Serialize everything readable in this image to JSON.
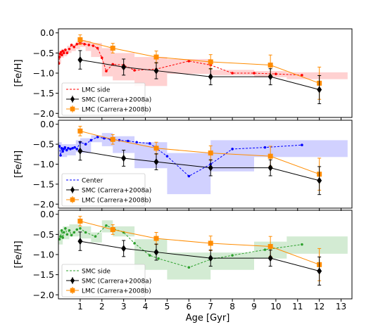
{
  "figure": {
    "xlabel": "Age [Gyr]"
  },
  "chart_data": [
    {
      "type": "line",
      "panel": "top",
      "ylabel": "[Fe/H]",
      "xlim": [
        0,
        13.5
      ],
      "ylim": [
        -2.1,
        0.1
      ],
      "xticks": [
        1,
        2,
        3,
        4,
        5,
        6,
        7,
        8,
        9,
        10,
        11,
        12,
        13
      ],
      "yticks": [
        0.0,
        -0.5,
        -1.0,
        -1.5,
        -2.0
      ],
      "ytick_labels": [
        "0.0",
        "−0.5",
        "−1.0",
        "−1.5",
        "−2.0"
      ],
      "legend": "lower-left",
      "color": "#ff0000",
      "band_color": "#ffb3b3",
      "bands": [
        {
          "x0": 0.0,
          "x1": 0.12,
          "y0": -0.75,
          "y1": -0.45
        },
        {
          "x0": 0.12,
          "x1": 0.25,
          "y0": -0.62,
          "y1": -0.4
        },
        {
          "x0": 0.25,
          "x1": 0.4,
          "y0": -0.58,
          "y1": -0.4
        },
        {
          "x0": 0.4,
          "x1": 0.6,
          "y0": -0.5,
          "y1": -0.32
        },
        {
          "x0": 0.6,
          "x1": 0.8,
          "y0": -0.45,
          "y1": -0.28
        },
        {
          "x0": 0.8,
          "x1": 1.0,
          "y0": -0.4,
          "y1": -0.22
        },
        {
          "x0": 1.0,
          "x1": 1.25,
          "y0": -0.35,
          "y1": -0.18
        },
        {
          "x0": 1.25,
          "x1": 1.5,
          "y0": -0.45,
          "y1": -0.2
        },
        {
          "x0": 1.5,
          "x1": 2.0,
          "y0": -0.6,
          "y1": -0.25
        },
        {
          "x0": 2.0,
          "x1": 2.5,
          "y0": -1.08,
          "y1": -0.38
        },
        {
          "x0": 2.5,
          "x1": 3.5,
          "y0": -1.18,
          "y1": -0.5
        },
        {
          "x0": 3.5,
          "x1": 5.0,
          "y0": -1.32,
          "y1": -0.6
        },
        {
          "x0": 5.0,
          "x1": 7.0,
          "y0": -1.02,
          "y1": -0.65
        },
        {
          "x0": 7.0,
          "x1": 9.0,
          "y0": -1.05,
          "y1": -0.92
        },
        {
          "x0": 9.0,
          "x1": 10.5,
          "y0": -1.1,
          "y1": -0.95
        },
        {
          "x0": 10.5,
          "x1": 13.3,
          "y0": -1.15,
          "y1": -0.98
        }
      ],
      "series": [
        {
          "name": "LMC side",
          "marker": "dot",
          "x": [
            0.02,
            0.05,
            0.08,
            0.12,
            0.16,
            0.2,
            0.25,
            0.32,
            0.4,
            0.5,
            0.6,
            0.72,
            0.85,
            1.0,
            1.2,
            1.4,
            1.6,
            1.8,
            2.0,
            2.2,
            2.5,
            3.0,
            3.5,
            4.5,
            6.0,
            7.0,
            8.0,
            9.0,
            10.0,
            11.2
          ],
          "y": [
            -0.76,
            -0.6,
            -0.52,
            -0.48,
            -0.55,
            -0.45,
            -0.5,
            -0.42,
            -0.5,
            -0.4,
            -0.3,
            -0.35,
            -0.28,
            -0.25,
            -0.28,
            -0.3,
            -0.32,
            -0.38,
            -0.62,
            -0.95,
            -0.78,
            -0.8,
            -0.93,
            -0.9,
            -0.7,
            -0.8,
            -1.0,
            -1.0,
            -1.02,
            -1.05
          ]
        }
      ]
    },
    {
      "type": "line",
      "panel": "middle",
      "ylabel": "[Fe/H]",
      "xlim": [
        0,
        13.5
      ],
      "ylim": [
        -2.1,
        0.1
      ],
      "xticks": [
        1,
        2,
        3,
        4,
        5,
        6,
        7,
        8,
        9,
        10,
        11,
        12,
        13
      ],
      "yticks": [
        0.0,
        -0.5,
        -1.0,
        -1.5,
        -2.0
      ],
      "ytick_labels": [
        "0.0",
        "−0.5",
        "−1.0",
        "−1.5",
        "−2.0"
      ],
      "legend": "lower-left",
      "color": "#0000ff",
      "band_color": "#b3b3ff",
      "bands": [
        {
          "x0": 0.0,
          "x1": 0.15,
          "y0": -0.75,
          "y1": -0.45
        },
        {
          "x0": 0.15,
          "x1": 0.4,
          "y0": -0.82,
          "y1": -0.5
        },
        {
          "x0": 0.4,
          "x1": 0.8,
          "y0": -0.78,
          "y1": -0.5
        },
        {
          "x0": 0.8,
          "x1": 1.0,
          "y0": -0.7,
          "y1": -0.4
        },
        {
          "x0": 1.0,
          "x1": 1.5,
          "y0": -0.72,
          "y1": -0.35
        },
        {
          "x0": 1.5,
          "x1": 2.0,
          "y0": -0.45,
          "y1": -0.28
        },
        {
          "x0": 2.0,
          "x1": 2.5,
          "y0": -0.55,
          "y1": -0.22
        },
        {
          "x0": 2.5,
          "x1": 3.5,
          "y0": -0.72,
          "y1": -0.3
        },
        {
          "x0": 3.5,
          "x1": 5.0,
          "y0": -1.1,
          "y1": -0.45
        },
        {
          "x0": 5.0,
          "x1": 7.0,
          "y0": -1.75,
          "y1": -0.72
        },
        {
          "x0": 7.0,
          "x1": 9.0,
          "y0": -1.18,
          "y1": -0.4
        },
        {
          "x0": 9.0,
          "x1": 13.3,
          "y0": -0.82,
          "y1": -0.4
        }
      ],
      "series": [
        {
          "name": "Center",
          "marker": "dot",
          "x": [
            0.05,
            0.1,
            0.15,
            0.2,
            0.25,
            0.3,
            0.38,
            0.45,
            0.55,
            0.65,
            0.75,
            0.85,
            1.0,
            1.25,
            1.5,
            1.8,
            2.1,
            2.4,
            2.8,
            3.2,
            3.6,
            4.2,
            5.0,
            6.0,
            7.0,
            8.0,
            9.5,
            11.2
          ],
          "y": [
            -0.55,
            -0.78,
            -0.6,
            -0.68,
            -0.62,
            -0.58,
            -0.65,
            -0.6,
            -0.62,
            -0.6,
            -0.58,
            -0.62,
            -0.45,
            -0.5,
            -0.4,
            -0.32,
            -0.35,
            -0.38,
            -0.4,
            -0.42,
            -0.45,
            -0.48,
            -0.8,
            -1.3,
            -1.0,
            -0.62,
            -0.58,
            -0.52
          ]
        }
      ]
    },
    {
      "type": "line",
      "panel": "bottom",
      "ylabel": "[Fe/H]",
      "xlim": [
        0,
        13.5
      ],
      "ylim": [
        -2.1,
        0.1
      ],
      "xticks": [
        1,
        2,
        3,
        4,
        5,
        6,
        7,
        8,
        9,
        10,
        11,
        12,
        13
      ],
      "yticks": [
        0.0,
        -0.5,
        -1.0,
        -1.5,
        -2.0
      ],
      "ytick_labels": [
        "0.0",
        "−0.5",
        "−1.0",
        "−1.5",
        "−2.0"
      ],
      "legend": "lower-left",
      "color": "#2ca02c",
      "band_color": "#b6ddb6",
      "bands": [
        {
          "x0": 0.0,
          "x1": 0.2,
          "y0": -0.75,
          "y1": -0.4
        },
        {
          "x0": 0.2,
          "x1": 0.5,
          "y0": -0.62,
          "y1": -0.3
        },
        {
          "x0": 0.5,
          "x1": 1.0,
          "y0": -0.55,
          "y1": -0.25
        },
        {
          "x0": 1.0,
          "x1": 1.5,
          "y0": -0.6,
          "y1": -0.3
        },
        {
          "x0": 1.5,
          "x1": 2.0,
          "y0": -0.7,
          "y1": -0.45
        },
        {
          "x0": 2.0,
          "x1": 2.5,
          "y0": -0.45,
          "y1": -0.15
        },
        {
          "x0": 2.5,
          "x1": 3.5,
          "y0": -0.55,
          "y1": -0.3
        },
        {
          "x0": 3.5,
          "x1": 5.0,
          "y0": -1.38,
          "y1": -0.62
        },
        {
          "x0": 5.0,
          "x1": 7.0,
          "y0": -1.62,
          "y1": -0.95
        },
        {
          "x0": 7.0,
          "x1": 9.0,
          "y0": -1.38,
          "y1": -0.95
        },
        {
          "x0": 9.0,
          "x1": 10.5,
          "y0": -1.1,
          "y1": -0.68
        },
        {
          "x0": 10.5,
          "x1": 13.3,
          "y0": -0.98,
          "y1": -0.55
        }
      ],
      "series": [
        {
          "name": "SMC side",
          "marker": "dot",
          "x": [
            0.05,
            0.1,
            0.15,
            0.2,
            0.25,
            0.32,
            0.4,
            0.5,
            0.6,
            0.72,
            0.85,
            1.0,
            1.25,
            1.7,
            2.2,
            2.5,
            3.0,
            3.5,
            4.2,
            4.6,
            6.0,
            7.0,
            8.0,
            9.5,
            11.2
          ],
          "y": [
            -0.62,
            -0.55,
            -0.4,
            -0.58,
            -0.45,
            -0.35,
            -0.5,
            -0.4,
            -0.52,
            -0.45,
            -0.38,
            -0.35,
            -0.45,
            -0.55,
            -0.28,
            -0.35,
            -0.45,
            -0.72,
            -1.02,
            -1.1,
            -1.32,
            -1.12,
            -1.02,
            -0.88,
            -0.75
          ]
        }
      ]
    }
  ],
  "reference_series": [
    {
      "name": "SMC (Carrera+2008a)",
      "color": "#000000",
      "marker": "diamond",
      "x": [
        1,
        3,
        4.5,
        7,
        9.75,
        12
      ],
      "y": [
        -0.67,
        -0.85,
        -0.94,
        -1.09,
        -1.09,
        -1.41
      ],
      "yerr": [
        0.23,
        0.2,
        0.2,
        0.2,
        0.2,
        0.35
      ]
    },
    {
      "name": "LMC (Carrera+2008b)",
      "color": "#ff8c00",
      "marker": "square",
      "x": [
        1,
        2.5,
        4.5,
        7,
        9.75,
        12
      ],
      "y": [
        -0.17,
        -0.38,
        -0.6,
        -0.72,
        -0.8,
        -1.25
      ],
      "yerr": [
        0.12,
        0.12,
        0.15,
        0.18,
        0.25,
        0.4
      ]
    }
  ]
}
